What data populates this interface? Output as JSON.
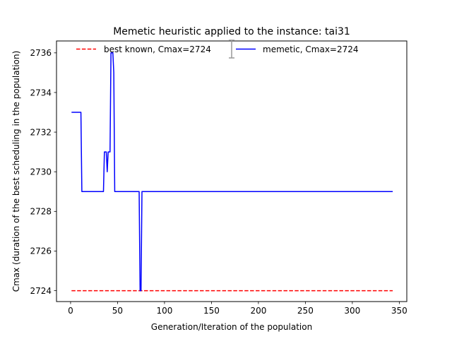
{
  "chart_data": {
    "type": "line",
    "title": "Memetic heuristic applied to the instance: tai31",
    "xlabel": "Generation/Iteration of the population",
    "ylabel": "Cmax (duration of the best scheduling in the population)",
    "xlim": [
      -15,
      358
    ],
    "ylim": [
      2723.45,
      2736.6
    ],
    "xticks": [
      0,
      50,
      100,
      150,
      200,
      250,
      300,
      350
    ],
    "yticks": [
      2724,
      2726,
      2728,
      2730,
      2732,
      2734,
      2736
    ],
    "grid": false,
    "legend_position": "top",
    "series": [
      {
        "name": "best known, Cmax=2724",
        "color": "#ff0000",
        "style": "dashed",
        "points": [
          [
            1,
            2724
          ],
          [
            343,
            2724
          ]
        ]
      },
      {
        "name": "memetic, Cmax=2724",
        "color": "#0000ff",
        "style": "solid",
        "points": [
          [
            1,
            2733
          ],
          [
            11,
            2733
          ],
          [
            12,
            2729
          ],
          [
            35,
            2729
          ],
          [
            36,
            2731
          ],
          [
            38,
            2731
          ],
          [
            39,
            2730
          ],
          [
            40,
            2731
          ],
          [
            42,
            2731
          ],
          [
            43,
            2736
          ],
          [
            45,
            2736
          ],
          [
            46,
            2735
          ],
          [
            47,
            2729
          ],
          [
            73,
            2729
          ],
          [
            74,
            2724
          ],
          [
            75,
            2724
          ],
          [
            76,
            2729
          ],
          [
            343,
            2729
          ]
        ]
      }
    ]
  }
}
